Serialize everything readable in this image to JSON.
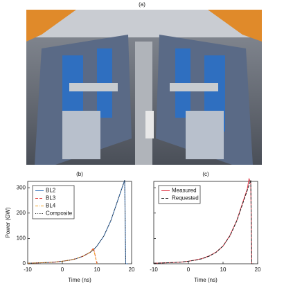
{
  "photo": {
    "label": "(a)"
  },
  "chart_data": [
    {
      "type": "line",
      "panel_label": "(b)",
      "x_label": "Time  (ns)",
      "y_label": "Power (GW)",
      "xlim": [
        -10,
        20
      ],
      "xticks": [
        -10,
        0,
        10,
        20
      ],
      "ylim": [
        0,
        325
      ],
      "yticks": [
        0,
        100,
        200,
        300
      ],
      "show_ytick_labels": true,
      "legend": "upper-left",
      "x": [
        -10,
        -8,
        -6,
        -4,
        -2,
        0,
        2,
        4,
        6,
        8,
        9,
        10,
        12,
        14,
        16,
        17,
        18,
        18.3,
        19
      ],
      "series": [
        {
          "name": "BL2",
          "color": "#2f6fb8",
          "dash": "solid",
          "values": [
            2,
            3,
            4,
            5,
            7,
            10,
            14,
            20,
            30,
            45,
            55,
            70,
            110,
            170,
            250,
            290,
            330,
            0,
            0
          ]
        },
        {
          "name": "BL3",
          "color": "#e03030",
          "dash": "dashed",
          "values": [
            2,
            3,
            4,
            5,
            7,
            10,
            14,
            20,
            30,
            45,
            62,
            0,
            null,
            null,
            null,
            null,
            null,
            null,
            null
          ]
        },
        {
          "name": "BL4",
          "color": "#f0a020",
          "dash": "dashdot",
          "values": [
            2,
            3,
            4,
            5,
            7,
            10,
            14,
            20,
            30,
            45,
            58,
            0,
            null,
            null,
            null,
            null,
            null,
            null,
            null
          ]
        },
        {
          "name": "Composite",
          "color": "#222222",
          "dash": "dotted",
          "values": [
            2,
            3,
            4,
            5,
            7,
            10,
            14,
            20,
            30,
            45,
            55,
            70,
            110,
            170,
            250,
            290,
            330,
            0,
            0
          ]
        }
      ]
    },
    {
      "type": "line",
      "panel_label": "(c)",
      "x_label": "Time  (ns)",
      "xlim": [
        -10,
        20
      ],
      "xticks": [
        -10,
        0,
        10,
        20
      ],
      "ylim": [
        0,
        325
      ],
      "yticks": [
        0,
        100,
        200,
        300
      ],
      "show_ytick_labels": false,
      "legend": "upper-left",
      "x": [
        -10,
        -8,
        -6,
        -4,
        -2,
        0,
        2,
        4,
        6,
        8,
        10,
        12,
        14,
        16,
        17,
        17.5,
        18,
        18.3,
        19
      ],
      "series": [
        {
          "name": "Measured",
          "color": "#e03040",
          "dash": "solid",
          "values": [
            2,
            3,
            4,
            5,
            7,
            10,
            15,
            21,
            31,
            46,
            70,
            112,
            172,
            255,
            295,
            335,
            320,
            0,
            0
          ]
        },
        {
          "name": "Requested",
          "color": "#222222",
          "dash": "dashed",
          "values": [
            2,
            3,
            4,
            5,
            7,
            10,
            14,
            20,
            30,
            45,
            70,
            110,
            170,
            250,
            290,
            310,
            330,
            0,
            0
          ]
        }
      ]
    }
  ]
}
